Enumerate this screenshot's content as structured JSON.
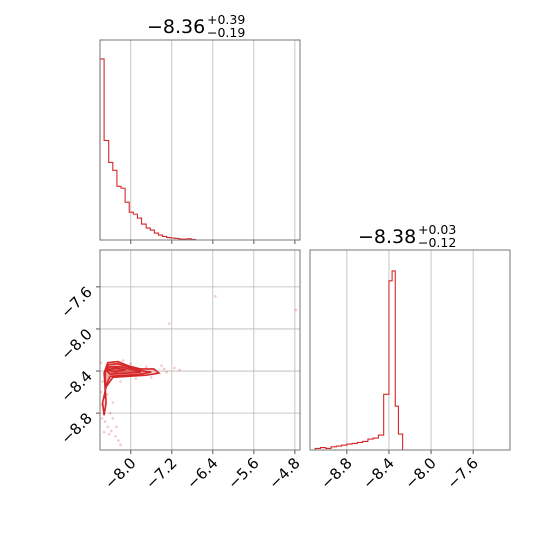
{
  "chart_data": [
    {
      "panel": "top-left",
      "type": "histogram",
      "color": "#d62728",
      "title": {
        "median": "−8.36",
        "plus": "+0.39",
        "minus": "−0.19"
      },
      "xlim": [
        -8.6,
        -4.7
      ],
      "xgrid": [
        -8.0,
        -7.2,
        -6.4,
        -5.6,
        -4.8
      ],
      "bins": [
        {
          "x0": -8.6,
          "x1": -8.52,
          "h": 0.91
        },
        {
          "x0": -8.52,
          "x1": -8.43,
          "h": 0.5
        },
        {
          "x0": -8.43,
          "x1": -8.35,
          "h": 0.39
        },
        {
          "x0": -8.35,
          "x1": -8.27,
          "h": 0.35
        },
        {
          "x0": -8.27,
          "x1": -8.19,
          "h": 0.27
        },
        {
          "x0": -8.19,
          "x1": -8.11,
          "h": 0.26
        },
        {
          "x0": -8.11,
          "x1": -8.03,
          "h": 0.19
        },
        {
          "x0": -8.03,
          "x1": -7.95,
          "h": 0.14
        },
        {
          "x0": -7.95,
          "x1": -7.87,
          "h": 0.13
        },
        {
          "x0": -7.87,
          "x1": -7.79,
          "h": 0.11
        },
        {
          "x0": -7.79,
          "x1": -7.7,
          "h": 0.08
        },
        {
          "x0": -7.7,
          "x1": -7.62,
          "h": 0.06
        },
        {
          "x0": -7.62,
          "x1": -7.54,
          "h": 0.05
        },
        {
          "x0": -7.54,
          "x1": -7.46,
          "h": 0.035
        },
        {
          "x0": -7.46,
          "x1": -7.38,
          "h": 0.025
        },
        {
          "x0": -7.38,
          "x1": -7.3,
          "h": 0.018
        },
        {
          "x0": -7.3,
          "x1": -7.22,
          "h": 0.012
        },
        {
          "x0": -7.22,
          "x1": -7.14,
          "h": 0.01
        },
        {
          "x0": -7.14,
          "x1": -7.06,
          "h": 0.008
        },
        {
          "x0": -7.06,
          "x1": -6.98,
          "h": 0.005
        },
        {
          "x0": -6.98,
          "x1": -6.9,
          "h": 0.004
        },
        {
          "x0": -6.9,
          "x1": -6.82,
          "h": 0.006
        },
        {
          "x0": -6.82,
          "x1": -6.74,
          "h": 0.003
        },
        {
          "x0": -6.74,
          "x1": -4.7,
          "h": 0.0
        }
      ]
    },
    {
      "panel": "bottom-left",
      "type": "scatter",
      "color": "#d62728",
      "xlim": [
        -8.6,
        -4.7
      ],
      "ylim": [
        -9.15,
        -7.25
      ],
      "xticks": [
        "−8.0",
        "−7.2",
        "−6.4",
        "−5.6",
        "−4.8"
      ],
      "xtick_values": [
        -8.0,
        -7.2,
        -6.4,
        -5.6,
        -4.8
      ],
      "yticks": [
        "−7.6",
        "−8.0",
        "−8.4",
        "−8.8"
      ],
      "ytick_values": [
        -7.6,
        -8.0,
        -8.4,
        -8.8
      ],
      "contours": [
        [
          [
            -8.52,
            -8.42
          ],
          [
            -8.45,
            -8.32
          ],
          [
            -8.25,
            -8.31
          ],
          [
            -8.05,
            -8.35
          ],
          [
            -7.82,
            -8.38
          ],
          [
            -7.55,
            -8.38
          ],
          [
            -7.45,
            -8.42
          ],
          [
            -7.7,
            -8.44
          ],
          [
            -8.05,
            -8.45
          ],
          [
            -8.35,
            -8.46
          ],
          [
            -8.48,
            -8.55
          ],
          [
            -8.55,
            -8.7
          ],
          [
            -8.52,
            -8.82
          ],
          [
            -8.48,
            -8.7
          ],
          [
            -8.5,
            -8.55
          ],
          [
            -8.52,
            -8.42
          ]
        ],
        [
          [
            -8.5,
            -8.41
          ],
          [
            -8.44,
            -8.34
          ],
          [
            -8.25,
            -8.33
          ],
          [
            -8.0,
            -8.37
          ],
          [
            -7.75,
            -8.4
          ],
          [
            -7.6,
            -8.41
          ],
          [
            -7.8,
            -8.43
          ],
          [
            -8.1,
            -8.44
          ],
          [
            -8.4,
            -8.45
          ],
          [
            -8.5,
            -8.55
          ],
          [
            -8.5,
            -8.66
          ],
          [
            -8.5,
            -8.41
          ]
        ],
        [
          [
            -8.47,
            -8.4
          ],
          [
            -8.42,
            -8.36
          ],
          [
            -8.2,
            -8.36
          ],
          [
            -7.95,
            -8.39
          ],
          [
            -7.8,
            -8.41
          ],
          [
            -8.1,
            -8.42
          ],
          [
            -8.4,
            -8.43
          ],
          [
            -8.47,
            -8.4
          ]
        ],
        [
          [
            -8.45,
            -8.39
          ],
          [
            -8.3,
            -8.37
          ],
          [
            -8.1,
            -8.39
          ],
          [
            -8.3,
            -8.41
          ],
          [
            -8.45,
            -8.39
          ]
        ]
      ],
      "points": [
        [
          -6.35,
          -7.69
        ],
        [
          -4.78,
          -7.82
        ],
        [
          -7.25,
          -7.95
        ],
        [
          -8.58,
          -8.32
        ],
        [
          -7.35,
          -8.38
        ],
        [
          -7.15,
          -8.37
        ],
        [
          -7.05,
          -8.39
        ],
        [
          -7.5,
          -8.42
        ],
        [
          -7.9,
          -8.47
        ],
        [
          -7.7,
          -8.36
        ],
        [
          -8.2,
          -8.5
        ],
        [
          -8.58,
          -8.6
        ],
        [
          -8.57,
          -8.72
        ],
        [
          -8.56,
          -8.85
        ],
        [
          -8.5,
          -8.88
        ],
        [
          -8.45,
          -8.93
        ],
        [
          -8.38,
          -8.97
        ],
        [
          -8.3,
          -9.02
        ],
        [
          -8.24,
          -9.06
        ],
        [
          -8.2,
          -9.1
        ],
        [
          -8.52,
          -8.98
        ],
        [
          -8.46,
          -8.62
        ],
        [
          -8.4,
          -8.8
        ],
        [
          -8.35,
          -8.7
        ],
        [
          -7.6,
          -8.46
        ],
        [
          -7.4,
          -8.35
        ],
        [
          -8.0,
          -8.33
        ],
        [
          -8.15,
          -8.3
        ],
        [
          -7.8,
          -8.43
        ],
        [
          -7.3,
          -8.41
        ],
        [
          -8.55,
          -8.5
        ],
        [
          -8.35,
          -8.85
        ],
        [
          -8.28,
          -8.93
        ],
        [
          -8.42,
          -9.0
        ],
        [
          -7.98,
          -8.44
        ]
      ]
    },
    {
      "panel": "bottom-right",
      "type": "histogram",
      "color": "#d62728",
      "title": {
        "median": "−8.38",
        "plus": "+0.03",
        "minus": "−0.12"
      },
      "xlim": [
        -9.15,
        -7.25
      ],
      "xticks": [
        "−8.8",
        "−8.4",
        "−8.0",
        "−7.6"
      ],
      "xtick_values": [
        -8.8,
        -8.4,
        -8.0,
        -7.6
      ],
      "bins": [
        {
          "x0": -9.15,
          "x1": -9.1,
          "h": 0.0
        },
        {
          "x0": -9.1,
          "x1": -9.05,
          "h": 0.008
        },
        {
          "x0": -9.05,
          "x1": -9.0,
          "h": 0.012
        },
        {
          "x0": -9.0,
          "x1": -8.95,
          "h": 0.008
        },
        {
          "x0": -8.95,
          "x1": -8.9,
          "h": 0.016
        },
        {
          "x0": -8.9,
          "x1": -8.85,
          "h": 0.02
        },
        {
          "x0": -8.85,
          "x1": -8.8,
          "h": 0.024
        },
        {
          "x0": -8.8,
          "x1": -8.75,
          "h": 0.03
        },
        {
          "x0": -8.75,
          "x1": -8.7,
          "h": 0.033
        },
        {
          "x0": -8.7,
          "x1": -8.65,
          "h": 0.038
        },
        {
          "x0": -8.65,
          "x1": -8.6,
          "h": 0.043
        },
        {
          "x0": -8.6,
          "x1": -8.55,
          "h": 0.055
        },
        {
          "x0": -8.55,
          "x1": -8.5,
          "h": 0.06
        },
        {
          "x0": -8.5,
          "x1": -8.45,
          "h": 0.075
        },
        {
          "x0": -8.45,
          "x1": -8.4,
          "h": 0.28
        },
        {
          "x0": -8.4,
          "x1": -8.37,
          "h": 0.85
        },
        {
          "x0": -8.37,
          "x1": -8.34,
          "h": 0.9
        },
        {
          "x0": -8.34,
          "x1": -8.31,
          "h": 0.22
        },
        {
          "x0": -8.31,
          "x1": -8.27,
          "h": 0.08
        },
        {
          "x0": -8.27,
          "x1": -7.25,
          "h": 0.0
        }
      ]
    }
  ]
}
